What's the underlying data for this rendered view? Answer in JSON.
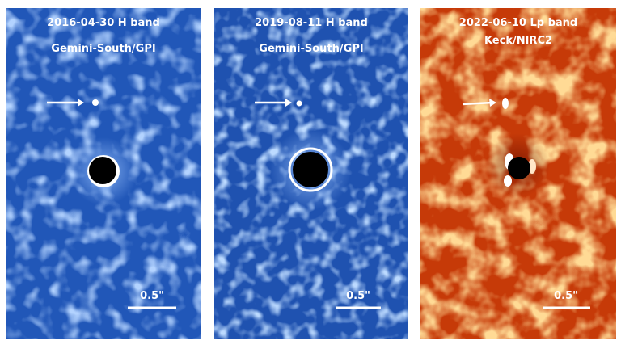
{
  "panels": [
    {
      "title": "2016-04-30 H band",
      "instrument": "Gemini-South/GPI",
      "scale": "0.5\""
    },
    {
      "title": "2019-08-11 H band",
      "instrument": "Gemini-South/GPI",
      "scale": "0.5\""
    },
    {
      "title": "2022-06-10 Lp band",
      "instrument": "Keck/NIRC2",
      "scale": "0.5\""
    }
  ]
}
